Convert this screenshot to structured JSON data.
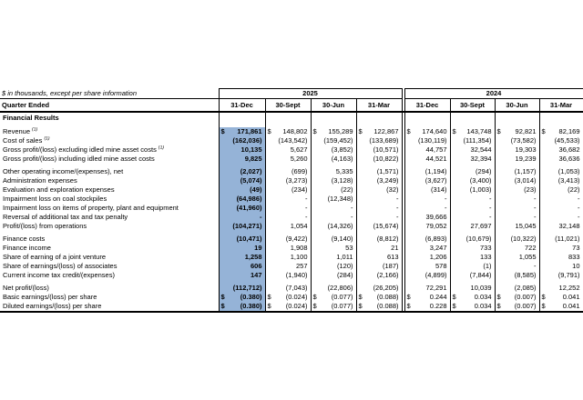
{
  "note": "$ in thousands, except per share information",
  "table": {
    "dollar_sign": "$",
    "quarter_row_label": "Quarter Ended",
    "section_title": "Financial Results",
    "highlight_color": "#95B3D7",
    "year_groups": [
      "2025",
      "2024"
    ],
    "quarter_columns": [
      "31-Dec",
      "30-Sept",
      "30-Jun",
      "31-Mar",
      "31-Dec",
      "30-Sept",
      "30-Jun",
      "31-Mar"
    ],
    "rows": [
      {
        "label": "Revenue",
        "footnote": "(1)",
        "dollar": true,
        "values": [
          "171,861",
          "148,802",
          "155,289",
          "122,867",
          "174,640",
          "143,748",
          "92,821",
          "82,169"
        ]
      },
      {
        "label": "Cost of sales",
        "footnote": "(1)",
        "values": [
          "(162,036)",
          "(143,542)",
          "(159,452)",
          "(133,689)",
          "(130,119)",
          "(111,354)",
          "(73,582)",
          "(45,533)"
        ]
      },
      {
        "label": "Gross profit/(loss) excluding idled mine asset costs",
        "footnote": "(1)",
        "values": [
          "10,135",
          "5,627",
          "(3,852)",
          "(10,571)",
          "44,757",
          "32,544",
          "19,303",
          "36,682"
        ]
      },
      {
        "label": "Gross profit/(loss) including idled mine asset costs",
        "values": [
          "9,825",
          "5,260",
          "(4,163)",
          "(10,822)",
          "44,521",
          "32,394",
          "19,239",
          "36,636"
        ]
      },
      {
        "label": "Other operating income/(expenses), net",
        "spacer_before": true,
        "values": [
          "(2,027)",
          "(699)",
          "5,335",
          "(1,571)",
          "(1,194)",
          "(294)",
          "(1,157)",
          "(1,053)"
        ]
      },
      {
        "label": "Administration expenses",
        "values": [
          "(5,074)",
          "(3,273)",
          "(3,128)",
          "(3,249)",
          "(3,627)",
          "(3,400)",
          "(3,014)",
          "(3,413)"
        ]
      },
      {
        "label": "Evaluation and exploration expenses",
        "values": [
          "(49)",
          "(234)",
          "(22)",
          "(32)",
          "(314)",
          "(1,003)",
          "(23)",
          "(22)"
        ]
      },
      {
        "label": "Impairment loss on coal stockpiles",
        "values": [
          "(64,986)",
          "-",
          "(12,348)",
          "-",
          "-",
          "-",
          "-",
          "-"
        ]
      },
      {
        "label": "Impairment loss on items of property, plant and equipment",
        "values": [
          "(41,960)",
          "-",
          "-",
          "-",
          "-",
          "-",
          "-",
          "-"
        ]
      },
      {
        "label": "Reversal of additional tax and tax penalty",
        "values": [
          "-",
          "-",
          "-",
          "-",
          "39,666",
          "-",
          "-",
          "-"
        ]
      },
      {
        "label": "Profit/(loss) from operations",
        "values": [
          "(104,271)",
          "1,054",
          "(14,326)",
          "(15,674)",
          "79,052",
          "27,697",
          "15,045",
          "32,148"
        ]
      },
      {
        "label": "Finance costs",
        "spacer_before": true,
        "values": [
          "(10,471)",
          "(9,422)",
          "(9,140)",
          "(8,812)",
          "(6,893)",
          "(10,679)",
          "(10,322)",
          "(11,021)"
        ]
      },
      {
        "label": "Finance income",
        "values": [
          "19",
          "1,908",
          "53",
          "21",
          "3,247",
          "733",
          "722",
          "73"
        ]
      },
      {
        "label": "Share of earning of a joint venture",
        "values": [
          "1,258",
          "1,100",
          "1,011",
          "613",
          "1,206",
          "133",
          "1,055",
          "833"
        ]
      },
      {
        "label": "Share of earnings/(loss) of associates",
        "values": [
          "606",
          "257",
          "(120)",
          "(187)",
          "578",
          "(1)",
          "-",
          "10"
        ]
      },
      {
        "label": "Current income tax credit/(expenses)",
        "values": [
          "147",
          "(1,940)",
          "(284)",
          "(2,166)",
          "(4,899)",
          "(7,844)",
          "(8,585)",
          "(9,791)"
        ]
      },
      {
        "label": "Net profit/(loss)",
        "spacer_before": true,
        "values": [
          "(112,712)",
          "(7,043)",
          "(22,806)",
          "(26,205)",
          "72,291",
          "10,039",
          "(2,085)",
          "12,252"
        ]
      },
      {
        "label": "Basic earnings/(loss) per share",
        "dollar": true,
        "values": [
          "(0.380)",
          "(0.024)",
          "(0.077)",
          "(0.088)",
          "0.244",
          "0.034",
          "(0.007)",
          "0.041"
        ]
      },
      {
        "label": "Diluted earnings/(loss) per share",
        "dollar": true,
        "values": [
          "(0.380)",
          "(0.024)",
          "(0.077)",
          "(0.088)",
          "0.228",
          "0.034",
          "(0.007)",
          "0.041"
        ]
      }
    ]
  }
}
